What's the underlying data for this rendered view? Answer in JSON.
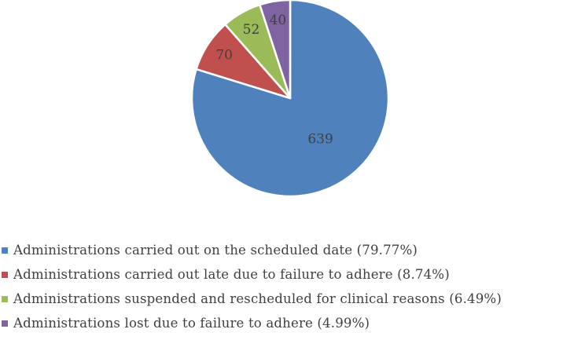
{
  "chart_data": {
    "type": "pie",
    "title": "",
    "start_angle_deg": 0,
    "direction": "clockwise",
    "legend_position": "bottom",
    "slices": [
      {
        "label": "Administrations carried out on the scheduled date (79.77%)",
        "value": 639,
        "percent": 79.77,
        "color": "#4F81BD"
      },
      {
        "label": "Administrations carried out late due to failure to adhere (8.74%)",
        "value": 70,
        "percent": 8.74,
        "color": "#C0504D"
      },
      {
        "label": "Administrations suspended and rescheduled for clinical reasons (6.49%)",
        "value": 52,
        "percent": 6.49,
        "color": "#9BBB59"
      },
      {
        "label": "Administrations lost due to failure to adhere (4.99%)",
        "value": 40,
        "percent": 4.99,
        "color": "#8064A2"
      }
    ]
  }
}
